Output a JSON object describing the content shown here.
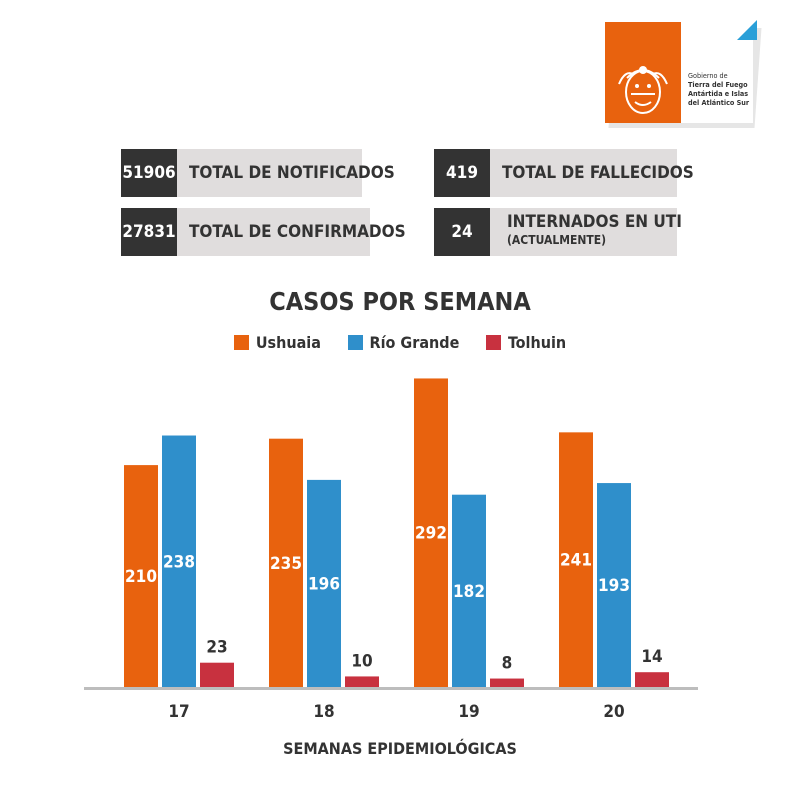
{
  "logo": {
    "line1": "Gobierno de",
    "line2": "Tierra del Fuego",
    "line3": "Antártida e Islas",
    "line4": "del Atlántico Sur"
  },
  "stats": {
    "notificados": {
      "value": "51906",
      "label": "TOTAL DE NOTIFICADOS"
    },
    "confirmados": {
      "value": "27831",
      "label": "TOTAL DE CONFIRMADOS"
    },
    "fallecidos": {
      "value": "419",
      "label": "TOTAL DE FALLECIDOS"
    },
    "uti": {
      "value": "24",
      "label": "INTERNADOS EN UTI",
      "sub": "(ACTUALMENTE)"
    }
  },
  "colors": {
    "ushuaia": "#e8620e",
    "riogrande": "#2f8fcb",
    "tolhuin": "#c8313f",
    "dark": "#333333"
  },
  "chart_data": {
    "type": "bar",
    "title": "CASOS POR SEMANA",
    "xlabel": "SEMANAS EPIDEMIOLÓGICAS",
    "ylabel": "",
    "ylim": [
      0,
      300
    ],
    "legend_position": "top-center",
    "grid": false,
    "categories": [
      "17",
      "18",
      "19",
      "20"
    ],
    "series": [
      {
        "name": "Ushuaia",
        "values": [
          210,
          235,
          292,
          241
        ]
      },
      {
        "name": "Río Grande",
        "values": [
          238,
          196,
          182,
          193
        ]
      },
      {
        "name": "Tolhuin",
        "values": [
          23,
          10,
          8,
          14
        ]
      }
    ]
  }
}
